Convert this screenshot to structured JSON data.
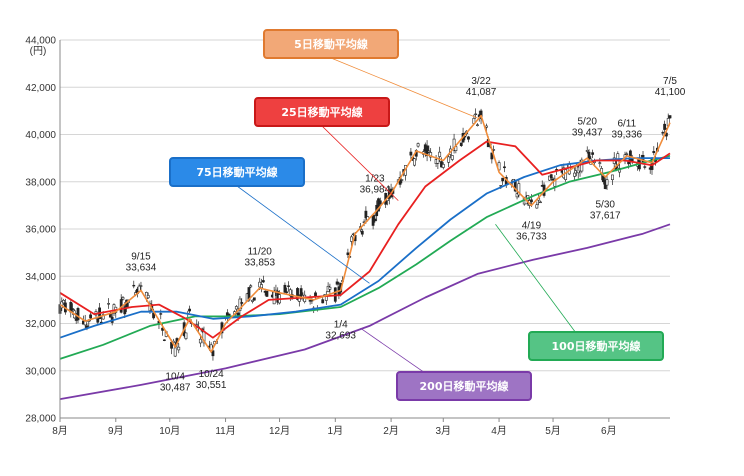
{
  "chart_data": {
    "type": "line",
    "y_unit": "(円)",
    "ylim": [
      28000,
      44000
    ],
    "y_ticks": [
      "28,000",
      "30,000",
      "32,000",
      "34,000",
      "36,000",
      "38,000",
      "40,000",
      "42,000",
      "44,000"
    ],
    "x_ticks": [
      "8月",
      "9月",
      "10月",
      "11月",
      "12月",
      "1月",
      "2月",
      "3月",
      "4月",
      "5月",
      "6月"
    ],
    "x_range": [
      "2023-08-01",
      "2024-07-05"
    ],
    "grid": "horizontal",
    "candles_color": "#222222",
    "series": [
      {
        "name": "5日移動平均線",
        "color": "#f08c3a",
        "label_bg": "#f2a877",
        "label_border": "#e07a30",
        "x": [
          "2023-08-01",
          "2023-08-15",
          "2023-09-01",
          "2023-09-15",
          "2023-10-04",
          "2023-10-12",
          "2023-10-24",
          "2023-11-01",
          "2023-11-20",
          "2023-12-01",
          "2023-12-20",
          "2024-01-04",
          "2024-01-12",
          "2024-01-23",
          "2024-02-01",
          "2024-02-15",
          "2024-03-01",
          "2024-03-22",
          "2024-04-01",
          "2024-04-19",
          "2024-05-01",
          "2024-05-20",
          "2024-05-30",
          "2024-06-11",
          "2024-06-25",
          "2024-07-05"
        ],
        "values": [
          32800,
          32100,
          32500,
          33400,
          31000,
          32200,
          30800,
          32000,
          33500,
          33300,
          33000,
          33400,
          35800,
          36700,
          37500,
          39300,
          38900,
          40800,
          38400,
          37000,
          38000,
          39000,
          38200,
          39100,
          38800,
          40500
        ]
      },
      {
        "name": "25日移動平均線",
        "color": "#e82020",
        "label_bg": "#ee4040",
        "label_border": "#c81818",
        "x": [
          "2023-08-01",
          "2023-08-20",
          "2023-09-10",
          "2023-09-25",
          "2023-10-10",
          "2023-10-25",
          "2023-11-10",
          "2023-11-25",
          "2023-12-15",
          "2024-01-04",
          "2024-01-20",
          "2024-02-05",
          "2024-02-20",
          "2024-03-10",
          "2024-03-25",
          "2024-04-10",
          "2024-04-25",
          "2024-05-10",
          "2024-05-25",
          "2024-06-10",
          "2024-06-25",
          "2024-07-05"
        ],
        "values": [
          33300,
          32400,
          32700,
          32800,
          32200,
          31400,
          32300,
          33000,
          33100,
          33200,
          34200,
          36200,
          37800,
          38900,
          39700,
          39500,
          38300,
          38600,
          38900,
          38900,
          38700,
          39200
        ]
      },
      {
        "name": "75日移動平均線",
        "color": "#1a6fc8",
        "label_bg": "#2b8ae8",
        "label_border": "#1a6fc8",
        "x": [
          "2023-08-01",
          "2023-08-20",
          "2023-09-15",
          "2023-10-05",
          "2023-10-25",
          "2023-11-15",
          "2023-12-10",
          "2024-01-04",
          "2024-01-25",
          "2024-02-15",
          "2024-03-05",
          "2024-03-25",
          "2024-04-15",
          "2024-05-05",
          "2024-05-25",
          "2024-06-15",
          "2024-07-05"
        ],
        "values": [
          31400,
          31900,
          32500,
          32500,
          32200,
          32300,
          32500,
          32800,
          33800,
          35200,
          36400,
          37500,
          38200,
          38700,
          38900,
          39000,
          39000
        ]
      },
      {
        "name": "100日移動平均線",
        "color": "#22aa55",
        "label_bg": "#55c485",
        "label_border": "#22aa55",
        "x": [
          "2023-08-01",
          "2023-08-25",
          "2023-09-20",
          "2023-10-15",
          "2023-11-05",
          "2023-12-01",
          "2024-01-04",
          "2024-01-25",
          "2024-02-15",
          "2024-03-05",
          "2024-03-25",
          "2024-04-20",
          "2024-05-10",
          "2024-06-01",
          "2024-06-20",
          "2024-07-05"
        ],
        "values": [
          30500,
          31100,
          31900,
          32300,
          32300,
          32400,
          32700,
          33500,
          34500,
          35500,
          36500,
          37400,
          38000,
          38400,
          38800,
          39100
        ]
      },
      {
        "name": "200日移動平均線",
        "color": "#7a3aa8",
        "label_bg": "#9e74c4",
        "label_border": "#7a3aa8",
        "x": [
          "2023-08-01",
          "2023-09-15",
          "2023-11-01",
          "2023-12-15",
          "2024-01-20",
          "2024-02-20",
          "2024-03-20",
          "2024-04-20",
          "2024-05-20",
          "2024-06-20",
          "2024-07-05"
        ],
        "values": [
          28800,
          29400,
          30100,
          30900,
          31900,
          33100,
          34100,
          34700,
          35200,
          35800,
          36200
        ]
      }
    ],
    "annotations": [
      {
        "date": "9/15",
        "value": "33,634",
        "x": "2023-09-15",
        "pos": "above"
      },
      {
        "date": "10/4",
        "value": "30,487",
        "x": "2023-10-04",
        "pos": "below"
      },
      {
        "date": "10/24",
        "value": "30,551",
        "x": "2023-10-24",
        "pos": "below"
      },
      {
        "date": "11/20",
        "value": "33,853",
        "x": "2023-11-20",
        "pos": "above"
      },
      {
        "date": "1/4",
        "value": "32,693",
        "x": "2024-01-04",
        "pos": "below"
      },
      {
        "date": "1/23",
        "value": "36,984",
        "x": "2024-01-23",
        "pos": "above"
      },
      {
        "date": "3/22",
        "value": "41,087",
        "x": "2024-03-22",
        "pos": "above"
      },
      {
        "date": "4/19",
        "value": "36,733",
        "x": "2024-04-19",
        "pos": "below"
      },
      {
        "date": "5/20",
        "value": "39,437",
        "x": "2024-05-20",
        "pos": "above"
      },
      {
        "date": "5/30",
        "value": "37,617",
        "x": "2024-05-30",
        "pos": "below"
      },
      {
        "date": "6/11",
        "value": "39,336",
        "x": "2024-06-11",
        "pos": "above"
      },
      {
        "date": "7/5",
        "value": "41,100",
        "x": "2024-07-05",
        "pos": "above"
      }
    ]
  }
}
